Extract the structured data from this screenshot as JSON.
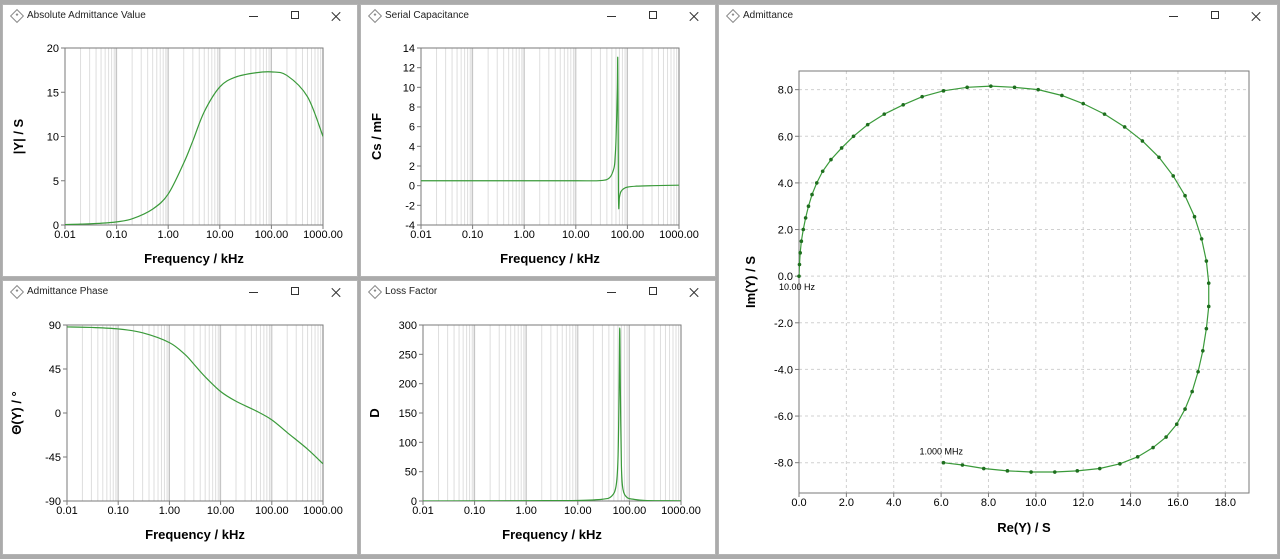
{
  "windows": [
    {
      "id": "absolute-admittance",
      "title": "Absolute Admittance Value"
    },
    {
      "id": "serial-capacitance",
      "title": "Serial Capacitance"
    },
    {
      "id": "admittance-phase",
      "title": "Admittance Phase"
    },
    {
      "id": "loss-factor",
      "title": "Loss Factor"
    },
    {
      "id": "admittance",
      "title": "Admittance"
    }
  ],
  "colors": {
    "series": "#3a9a3a",
    "grid": "#d0d0d0",
    "frame": "#7a7a7a"
  },
  "icons": {
    "window": "diamond-window-icon",
    "minimize": "minimize-icon",
    "maximize": "maximize-icon",
    "close": "close-icon"
  },
  "chart_data": [
    {
      "type": "line",
      "xscale": "log",
      "xlabel": "Frequency / kHz",
      "ylabel": "|Y| / S",
      "xlim": [
        0.01,
        1000
      ],
      "ylim": [
        0,
        20
      ],
      "xticks": [
        "0.01",
        "0.10",
        "1.00",
        "10.00",
        "100.00",
        "1000.00"
      ],
      "yticks": [
        "0",
        "5",
        "10",
        "15",
        "20"
      ],
      "x": [
        0.01,
        0.02,
        0.05,
        0.1,
        0.2,
        0.5,
        1,
        2,
        3,
        5,
        10,
        20,
        50,
        100,
        200,
        500,
        1000
      ],
      "y": [
        0.05,
        0.1,
        0.2,
        0.35,
        0.7,
        1.8,
        3.5,
        7,
        9.5,
        12.8,
        15.6,
        16.7,
        17.2,
        17.3,
        16.9,
        14.5,
        10
      ]
    },
    {
      "type": "line",
      "xscale": "log",
      "xlabel": "Frequency / kHz",
      "ylabel": "Cs / mF",
      "xlim": [
        0.01,
        1000
      ],
      "ylim": [
        -4,
        14
      ],
      "xticks": [
        "0.01",
        "0.10",
        "1.00",
        "10.00",
        "100.00",
        "1000.00"
      ],
      "yticks": [
        "-4",
        "-2",
        "0",
        "2",
        "4",
        "6",
        "8",
        "10",
        "12",
        "14"
      ],
      "x": [
        0.01,
        0.1,
        1,
        10,
        30,
        45,
        55,
        58,
        60,
        62,
        64,
        65,
        66,
        67,
        68,
        69,
        70,
        75,
        85,
        100,
        150,
        300,
        1000
      ],
      "y": [
        0.5,
        0.5,
        0.5,
        0.5,
        0.52,
        0.8,
        1.8,
        3,
        4.5,
        7,
        10,
        13,
        7,
        -0.5,
        -2.3,
        -1.8,
        -1.2,
        -0.6,
        -0.3,
        -0.15,
        -0.05,
        0,
        0.05
      ]
    },
    {
      "type": "line",
      "xscale": "log",
      "xlabel": "Frequency / kHz",
      "ylabel": "Θ(Y) / °",
      "xlim": [
        0.01,
        1000
      ],
      "ylim": [
        -90,
        90
      ],
      "xticks": [
        "0.01",
        "0.10",
        "1.00",
        "10.00",
        "100.00",
        "1000.00"
      ],
      "yticks": [
        "90",
        "45",
        "0",
        "-45",
        "-90"
      ],
      "x": [
        0.01,
        0.03,
        0.1,
        0.3,
        1,
        2,
        3,
        5,
        10,
        20,
        50,
        100,
        200,
        500,
        1000
      ],
      "y": [
        88,
        87.5,
        86,
        82,
        72,
        60,
        50,
        37,
        22,
        12,
        2,
        -7,
        -20,
        -37,
        -52
      ]
    },
    {
      "type": "line",
      "xscale": "log",
      "xlabel": "Frequency / kHz",
      "ylabel": "D",
      "xlim": [
        0.01,
        1000
      ],
      "ylim": [
        0,
        300
      ],
      "xticks": [
        "0.01",
        "0.10",
        "1.00",
        "10.00",
        "100.00",
        "1000.00"
      ],
      "yticks": [
        "0",
        "50",
        "100",
        "150",
        "200",
        "250",
        "300"
      ],
      "x": [
        0.01,
        1,
        10,
        30,
        45,
        55,
        60,
        63,
        65,
        67,
        70,
        75,
        90,
        120,
        200,
        500,
        1000
      ],
      "y": [
        0,
        0.5,
        1,
        3,
        8,
        25,
        70,
        180,
        295,
        180,
        60,
        20,
        6,
        3,
        1,
        0.5,
        0.3
      ]
    },
    {
      "type": "scatter",
      "xlabel": "Re(Y) / S",
      "ylabel": "Im(Y) / S",
      "xlim": [
        0,
        19
      ],
      "ylim": [
        -9.3,
        8.8
      ],
      "xticks": [
        "0.0",
        "2.0",
        "4.0",
        "6.0",
        "8.0",
        "10.0",
        "12.0",
        "14.0",
        "16.0",
        "18.0"
      ],
      "yticks": [
        "8.0",
        "6.0",
        "4.0",
        "2.0",
        "0.0",
        "-2.0",
        "-4.0",
        "-6.0",
        "-8.0"
      ],
      "annotations": [
        {
          "text": "10.00 Hz",
          "x": 0,
          "y": 0
        },
        {
          "text": "1.000 MHz",
          "x": 6.1,
          "y": -8
        }
      ],
      "x": [
        0,
        0.02,
        0.05,
        0.1,
        0.18,
        0.28,
        0.4,
        0.55,
        0.75,
        1.0,
        1.35,
        1.8,
        2.3,
        2.9,
        3.6,
        4.4,
        5.2,
        6.1,
        7.1,
        8.1,
        9.1,
        10.1,
        11.1,
        12.0,
        12.9,
        13.75,
        14.5,
        15.2,
        15.8,
        16.3,
        16.7,
        17.0,
        17.2,
        17.3,
        17.3,
        17.2,
        17.05,
        16.85,
        16.6,
        16.3,
        15.95,
        15.5,
        14.95,
        14.3,
        13.55,
        12.7,
        11.75,
        10.8,
        9.8,
        8.8,
        7.8,
        6.9,
        6.1
      ],
      "y": [
        0,
        0.5,
        1.0,
        1.5,
        2.0,
        2.5,
        3.0,
        3.5,
        4.0,
        4.5,
        5.0,
        5.5,
        6.0,
        6.5,
        6.95,
        7.35,
        7.7,
        7.95,
        8.1,
        8.15,
        8.1,
        8.0,
        7.75,
        7.4,
        6.95,
        6.4,
        5.8,
        5.1,
        4.3,
        3.45,
        2.55,
        1.6,
        0.65,
        -0.3,
        -1.3,
        -2.25,
        -3.2,
        -4.1,
        -4.95,
        -5.7,
        -6.35,
        -6.9,
        -7.35,
        -7.75,
        -8.05,
        -8.25,
        -8.35,
        -8.4,
        -8.4,
        -8.35,
        -8.25,
        -8.1,
        -8.0
      ]
    }
  ]
}
